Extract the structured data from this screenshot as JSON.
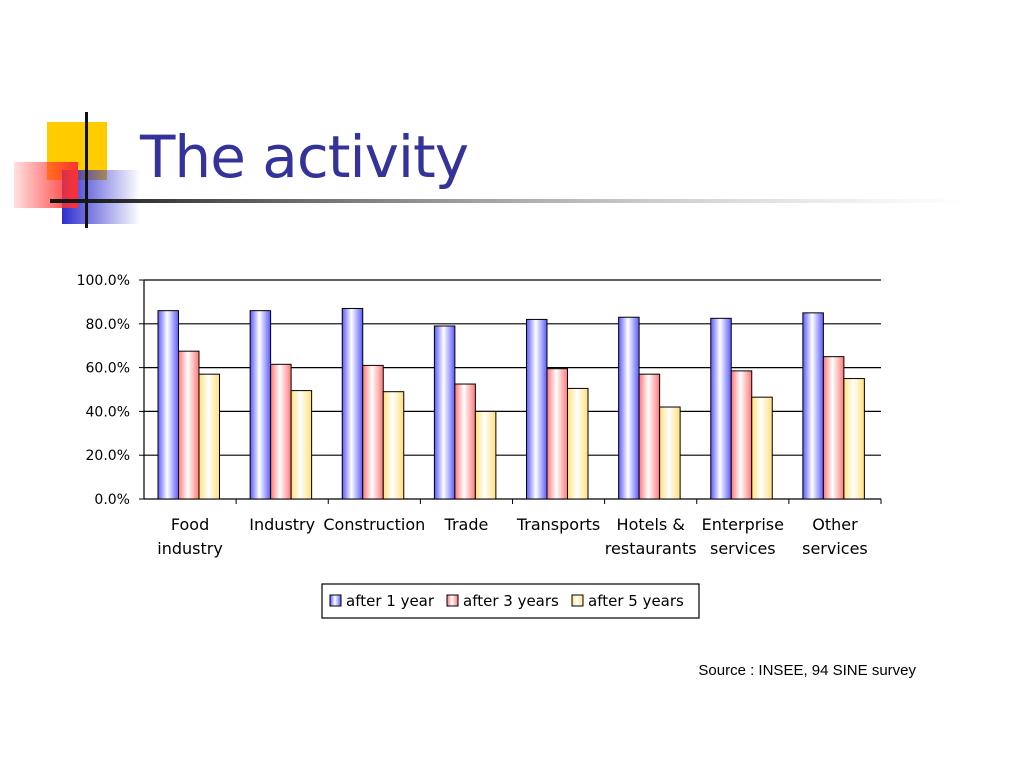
{
  "slide": {
    "title": "The activity",
    "source_note": "Source : INSEE, 94 SINE survey"
  },
  "colors": {
    "title": "#333399",
    "series": [
      "#5a5aff",
      "#ff7878",
      "#ffe07a"
    ],
    "deco_yellow": "#ffcc00",
    "deco_red": "#ff4040",
    "deco_blue": "#2e2ecf"
  },
  "chart_data": {
    "type": "bar",
    "categories": [
      [
        "Food",
        "industry"
      ],
      [
        "Industry"
      ],
      [
        "Construction"
      ],
      [
        "Trade"
      ],
      [
        "Transports"
      ],
      [
        "Hotels &",
        "restaurants"
      ],
      [
        "Enterprise",
        "services"
      ],
      [
        "Other",
        "services"
      ]
    ],
    "series": [
      {
        "name": "after 1 year",
        "values": [
          86,
          86,
          87,
          79,
          82,
          83,
          82.5,
          85
        ]
      },
      {
        "name": "after 3 years",
        "values": [
          67.5,
          61.5,
          61,
          52.5,
          59.5,
          57,
          58.5,
          65
        ]
      },
      {
        "name": "after 5 years",
        "values": [
          57,
          49.5,
          49,
          40,
          50.5,
          42,
          46.5,
          55
        ]
      }
    ],
    "ylim": [
      0,
      100
    ],
    "yticks": [
      "0.0%",
      "20.0%",
      "40.0%",
      "60.0%",
      "80.0%",
      "100.0%"
    ],
    "grid": true,
    "legend": "bottom"
  }
}
